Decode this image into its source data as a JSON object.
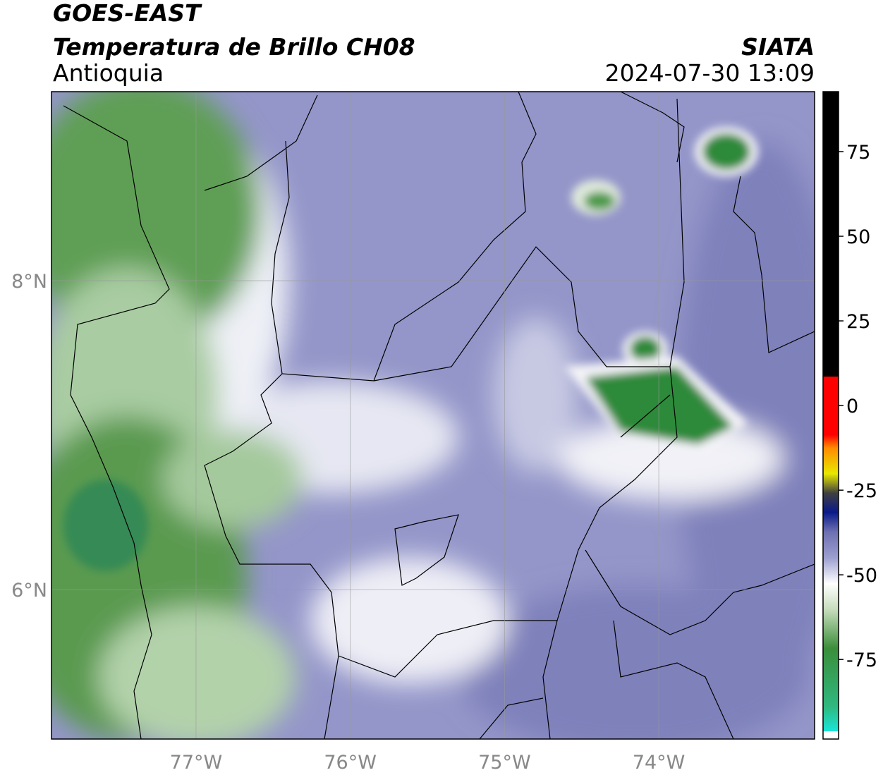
{
  "header": {
    "satellite": "GOES-EAST",
    "product": "Temperatura de Brillo CH08",
    "organization": "SIATA",
    "region": "Antioquia",
    "datetime": "2024-07-30 13:09"
  },
  "map": {
    "lonlim": [
      -77.937,
      -72.99
    ],
    "latlim": [
      5.032,
      9.224
    ],
    "lon_ticks": [
      {
        "value": -77,
        "label": "77°W"
      },
      {
        "value": -76,
        "label": "76°W"
      },
      {
        "value": -75,
        "label": "75°W"
      },
      {
        "value": -74,
        "label": "74°W"
      }
    ],
    "lat_ticks": [
      {
        "value": 8,
        "label": "8°N"
      },
      {
        "value": 6,
        "label": "6°N"
      }
    ]
  },
  "colorbar": {
    "lim": [
      -98.5,
      92.7
    ],
    "ticks": [
      75,
      50,
      25,
      0,
      -25,
      -50,
      -75
    ]
  }
}
